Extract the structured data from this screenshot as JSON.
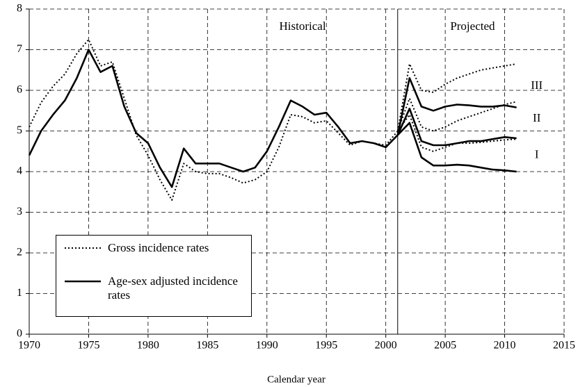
{
  "chart_data": {
    "type": "line",
    "xlabel": "Calendar year",
    "xlim": [
      1970,
      2015
    ],
    "xticks": [
      1970,
      1975,
      1980,
      1985,
      1990,
      1995,
      2000,
      2005,
      2010,
      2015
    ],
    "ylim": [
      0,
      8
    ],
    "yticks": [
      0,
      1,
      2,
      3,
      4,
      5,
      6,
      7,
      8
    ],
    "grid": true,
    "legend": "lower left",
    "color": "#000000",
    "vlines": [
      2001
    ],
    "annotations": [
      {
        "text": "Historical",
        "x": 1993,
        "y": 7.55
      },
      {
        "text": "Projected",
        "x": 2007.3,
        "y": 7.55
      },
      {
        "text": "III",
        "x": 2012.7,
        "y": 6.1
      },
      {
        "text": "II",
        "x": 2012.7,
        "y": 5.3
      },
      {
        "text": "I",
        "x": 2012.7,
        "y": 4.4
      }
    ],
    "series": [
      {
        "name": "Gross incidence rates",
        "style": "dotted",
        "x": [
          1970,
          1971,
          1972,
          1973,
          1974,
          1975,
          1976,
          1977,
          1978,
          1979,
          1980,
          1981,
          1982,
          1983,
          1984,
          1985,
          1986,
          1987,
          1988,
          1989,
          1990,
          1991,
          1992,
          1993,
          1994,
          1995,
          1996,
          1997,
          1998,
          1999,
          2000,
          2001
        ],
        "values": [
          5.1,
          5.7,
          6.1,
          6.4,
          6.9,
          7.25,
          6.6,
          6.7,
          5.8,
          4.9,
          4.4,
          3.8,
          3.3,
          4.2,
          4.0,
          3.95,
          3.95,
          3.85,
          3.72,
          3.8,
          4.0,
          4.6,
          5.4,
          5.35,
          5.2,
          5.25,
          4.95,
          4.65,
          4.75,
          4.7,
          4.65,
          5.0
        ]
      },
      {
        "name": "Age-sex adjusted incidence rates",
        "style": "solid",
        "x": [
          1970,
          1971,
          1972,
          1973,
          1974,
          1975,
          1976,
          1977,
          1978,
          1979,
          1980,
          1981,
          1982,
          1983,
          1984,
          1985,
          1986,
          1987,
          1988,
          1989,
          1990,
          1991,
          1992,
          1993,
          1994,
          1995,
          1996,
          1997,
          1998,
          1999,
          2000,
          2001
        ],
        "values": [
          4.4,
          5.0,
          5.4,
          5.75,
          6.3,
          7.0,
          6.45,
          6.6,
          5.6,
          4.95,
          4.7,
          4.1,
          3.62,
          4.57,
          4.2,
          4.2,
          4.2,
          4.1,
          4.0,
          4.1,
          4.5,
          5.1,
          5.75,
          5.6,
          5.4,
          5.45,
          5.1,
          4.7,
          4.75,
          4.7,
          4.6,
          4.9
        ]
      },
      {
        "style": "dotted",
        "x": [
          2001,
          2002,
          2003,
          2004,
          2005,
          2006,
          2007,
          2008,
          2009,
          2010,
          2011
        ],
        "values": [
          5.0,
          6.65,
          6.0,
          5.95,
          6.15,
          6.3,
          6.4,
          6.5,
          6.55,
          6.6,
          6.65
        ]
      },
      {
        "style": "solid",
        "x": [
          2001,
          2002,
          2003,
          2004,
          2005,
          2006,
          2007,
          2008,
          2009,
          2010,
          2011
        ],
        "values": [
          4.9,
          6.3,
          5.6,
          5.5,
          5.6,
          5.65,
          5.63,
          5.6,
          5.6,
          5.63,
          5.58
        ]
      },
      {
        "style": "dotted",
        "x": [
          2001,
          2002,
          2003,
          2004,
          2005,
          2006,
          2007,
          2008,
          2009,
          2010,
          2011
        ],
        "values": [
          5.0,
          5.8,
          5.1,
          5.0,
          5.1,
          5.25,
          5.35,
          5.45,
          5.55,
          5.65,
          5.72
        ]
      },
      {
        "style": "solid",
        "x": [
          2001,
          2002,
          2003,
          2004,
          2005,
          2006,
          2007,
          2008,
          2009,
          2010,
          2011
        ],
        "values": [
          4.9,
          5.55,
          4.75,
          4.65,
          4.65,
          4.7,
          4.75,
          4.75,
          4.8,
          4.85,
          4.82
        ]
      },
      {
        "style": "dotted",
        "x": [
          2001,
          2002,
          2003,
          2004,
          2005,
          2006,
          2007,
          2008,
          2009,
          2010,
          2011
        ],
        "values": [
          5.0,
          5.4,
          4.6,
          4.5,
          4.6,
          4.7,
          4.7,
          4.72,
          4.75,
          4.78,
          4.8
        ]
      },
      {
        "style": "solid",
        "x": [
          2001,
          2002,
          2003,
          2004,
          2005,
          2006,
          2007,
          2008,
          2009,
          2010,
          2011
        ],
        "values": [
          4.9,
          5.2,
          4.35,
          4.15,
          4.15,
          4.17,
          4.15,
          4.1,
          4.05,
          4.03,
          4.0
        ]
      }
    ]
  }
}
